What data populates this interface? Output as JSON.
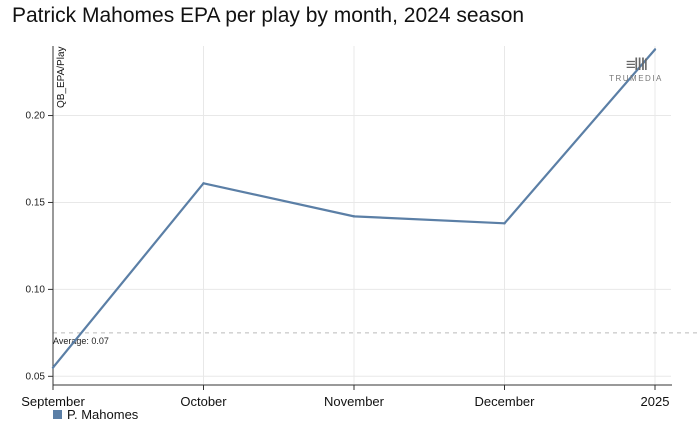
{
  "title": "Patrick Mahomes EPA per play by month, 2024 season",
  "brand": {
    "mark": "≡ⅢI",
    "name": "TRUMEDIA"
  },
  "legend": {
    "label": "P. Mahomes"
  },
  "average": {
    "label": "Average: 0.07",
    "value": 0.075
  },
  "colors": {
    "series": "#5b7fa6",
    "average": "#bbbbbb",
    "axis": "#333333",
    "grid": "#e8e8e8"
  },
  "chart_data": {
    "type": "line",
    "title": "Patrick Mahomes EPA per play by month, 2024 season",
    "xlabel": "",
    "ylabel": "QB_EPA/Play",
    "categories": [
      "September",
      "October",
      "November",
      "December",
      "2025"
    ],
    "series": [
      {
        "name": "P. Mahomes",
        "values": [
          0.055,
          0.161,
          0.142,
          0.138,
          0.238
        ]
      }
    ],
    "yticks": [
      "0.05",
      "0.10",
      "0.15",
      "0.20"
    ],
    "ytick_values": [
      0.05,
      0.1,
      0.15,
      0.2
    ],
    "ylim": [
      0.045,
      0.24
    ],
    "grid": true,
    "legend_position": "bottom-left"
  }
}
